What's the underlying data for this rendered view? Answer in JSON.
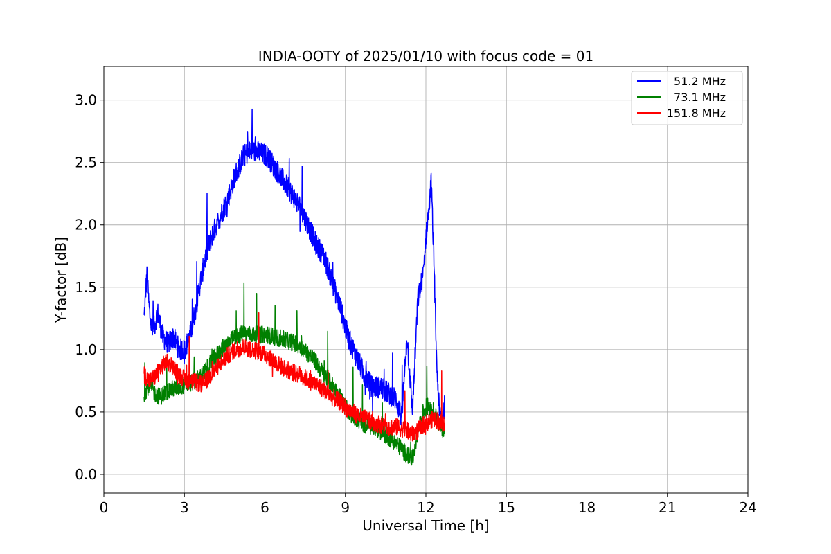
{
  "chart_data": {
    "type": "line",
    "title": "INDIA-OOTY of 2025/01/10 with focus code = 01",
    "xlabel": "Universal Time [h]",
    "ylabel": "Y-factor [dB]",
    "xlim": [
      0,
      24
    ],
    "ylim": [
      -0.15,
      3.27
    ],
    "x_ticks": [
      0,
      3,
      6,
      9,
      12,
      15,
      18,
      21,
      24
    ],
    "y_ticks": [
      0.0,
      0.5,
      1.0,
      1.5,
      2.0,
      2.5,
      3.0
    ],
    "x_tick_labels": [
      "0",
      "3",
      "6",
      "9",
      "12",
      "15",
      "18",
      "21",
      "24"
    ],
    "y_tick_labels": [
      "0.0",
      "0.5",
      "1.0",
      "1.5",
      "2.0",
      "2.5",
      "3.0"
    ],
    "grid": true,
    "legend_position": "top-right",
    "series": [
      {
        "name": "51.2 MHz",
        "color": "#0000ff",
        "x": [
          1.5,
          1.6,
          1.7,
          1.8,
          1.9,
          2.0,
          2.2,
          2.4,
          2.6,
          2.8,
          3.0,
          3.2,
          3.4,
          3.6,
          3.8,
          4.0,
          4.3,
          4.6,
          4.9,
          5.2,
          5.5,
          5.8,
          6.1,
          6.4,
          6.7,
          7.0,
          7.3,
          7.6,
          7.9,
          8.2,
          8.5,
          8.8,
          9.1,
          9.4,
          9.7,
          10.0,
          10.3,
          10.6,
          10.9,
          11.1,
          11.2,
          11.3,
          11.5,
          11.7,
          11.9,
          12.0,
          12.1,
          12.2,
          12.3,
          12.4,
          12.5,
          12.6,
          12.7
        ],
        "y": [
          1.25,
          1.6,
          1.3,
          1.15,
          1.2,
          1.3,
          1.1,
          1.05,
          1.1,
          1.0,
          1.0,
          1.1,
          1.3,
          1.55,
          1.75,
          1.9,
          2.05,
          2.2,
          2.4,
          2.55,
          2.6,
          2.58,
          2.55,
          2.45,
          2.35,
          2.25,
          2.15,
          2.0,
          1.85,
          1.75,
          1.55,
          1.35,
          1.1,
          0.95,
          0.8,
          0.7,
          0.7,
          0.65,
          0.6,
          0.45,
          0.8,
          1.1,
          0.5,
          1.4,
          1.6,
          1.9,
          2.1,
          2.35,
          1.7,
          0.9,
          0.5,
          0.45,
          0.55
        ]
      },
      {
        "name": "73.1 MHz",
        "color": "#008000",
        "x": [
          1.5,
          1.7,
          1.9,
          2.1,
          2.3,
          2.5,
          2.8,
          3.1,
          3.4,
          3.7,
          4.0,
          4.3,
          4.6,
          4.9,
          5.2,
          5.5,
          5.8,
          6.1,
          6.4,
          6.7,
          7.0,
          7.3,
          7.6,
          7.9,
          8.2,
          8.5,
          8.8,
          9.1,
          9.4,
          9.7,
          10.0,
          10.3,
          10.6,
          10.9,
          11.2,
          11.5,
          11.7,
          11.9,
          12.1,
          12.3,
          12.5,
          12.7
        ],
        "y": [
          0.65,
          0.72,
          0.65,
          0.62,
          0.66,
          0.68,
          0.7,
          0.72,
          0.75,
          0.8,
          0.9,
          0.98,
          1.05,
          1.1,
          1.13,
          1.12,
          1.12,
          1.12,
          1.1,
          1.08,
          1.06,
          1.03,
          0.97,
          0.9,
          0.8,
          0.72,
          0.62,
          0.5,
          0.45,
          0.4,
          0.38,
          0.35,
          0.3,
          0.25,
          0.18,
          0.12,
          0.35,
          0.5,
          0.55,
          0.5,
          0.4,
          0.35
        ]
      },
      {
        "name": "151.8 MHz",
        "color": "#ff0000",
        "x": [
          1.5,
          1.7,
          1.9,
          2.1,
          2.3,
          2.5,
          2.8,
          3.1,
          3.4,
          3.7,
          4.0,
          4.3,
          4.6,
          4.9,
          5.2,
          5.5,
          5.8,
          6.1,
          6.4,
          6.7,
          7.0,
          7.3,
          7.6,
          7.9,
          8.2,
          8.5,
          8.8,
          9.1,
          9.4,
          9.7,
          10.0,
          10.3,
          10.6,
          10.9,
          11.2,
          11.5,
          11.7,
          11.9,
          12.1,
          12.3,
          12.5,
          12.7
        ],
        "y": [
          0.8,
          0.75,
          0.78,
          0.85,
          0.9,
          0.88,
          0.8,
          0.75,
          0.74,
          0.72,
          0.8,
          0.88,
          0.95,
          1.0,
          1.02,
          1.0,
          0.98,
          0.95,
          0.9,
          0.85,
          0.82,
          0.8,
          0.76,
          0.72,
          0.68,
          0.62,
          0.58,
          0.52,
          0.48,
          0.45,
          0.42,
          0.4,
          0.38,
          0.38,
          0.36,
          0.32,
          0.35,
          0.4,
          0.42,
          0.45,
          0.42,
          0.4
        ]
      }
    ]
  }
}
